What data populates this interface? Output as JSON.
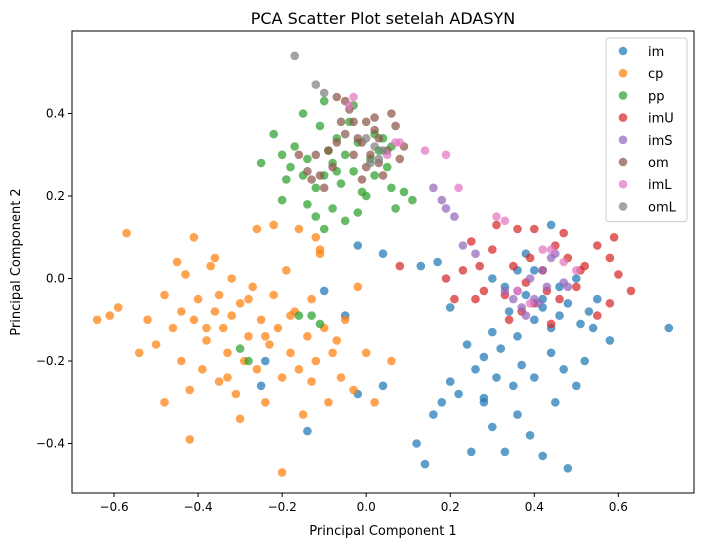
{
  "chart_data": {
    "type": "scatter",
    "title": "PCA Scatter Plot setelah ADASYN",
    "xlabel": "Principal Component 1",
    "ylabel": "Principal Component 2",
    "xlim": [
      -0.7,
      0.78
    ],
    "ylim": [
      -0.52,
      0.6
    ],
    "xticks": [
      -0.6,
      -0.4,
      -0.2,
      0.0,
      0.2,
      0.4,
      0.6
    ],
    "xtick_labels": [
      "−0.6",
      "−0.4",
      "−0.2",
      "0.0",
      "0.2",
      "0.4",
      "0.6"
    ],
    "yticks": [
      -0.4,
      -0.2,
      0.0,
      0.2,
      0.4
    ],
    "ytick_labels": [
      "−0.4",
      "−0.2",
      "0.0",
      "0.2",
      "0.4"
    ],
    "grid": false,
    "legend_position": "top-right",
    "series": [
      {
        "name": "im",
        "color": "#1f77b4",
        "points": [
          [
            0.72,
            -0.12
          ],
          [
            0.58,
            -0.15
          ],
          [
            0.55,
            -0.05
          ],
          [
            0.53,
            -0.08
          ],
          [
            0.51,
            -0.11
          ],
          [
            0.48,
            -0.06
          ],
          [
            0.46,
            -0.09
          ],
          [
            0.44,
            -0.12
          ],
          [
            0.42,
            -0.07
          ],
          [
            0.4,
            -0.1
          ],
          [
            0.38,
            -0.04
          ],
          [
            0.36,
            -0.14
          ],
          [
            0.34,
            -0.08
          ],
          [
            0.32,
            -0.17
          ],
          [
            0.3,
            -0.13
          ],
          [
            0.28,
            -0.19
          ],
          [
            0.26,
            -0.22
          ],
          [
            0.24,
            -0.16
          ],
          [
            0.22,
            -0.28
          ],
          [
            0.2,
            -0.25
          ],
          [
            0.18,
            -0.3
          ],
          [
            0.16,
            -0.33
          ],
          [
            0.14,
            -0.45
          ],
          [
            0.12,
            -0.4
          ],
          [
            0.28,
            -0.3
          ],
          [
            0.3,
            -0.36
          ],
          [
            0.33,
            -0.42
          ],
          [
            0.36,
            -0.33
          ],
          [
            0.39,
            -0.38
          ],
          [
            0.42,
            -0.43
          ],
          [
            0.45,
            -0.3
          ],
          [
            0.48,
            -0.46
          ],
          [
            0.5,
            -0.26
          ],
          [
            0.52,
            -0.2
          ],
          [
            0.44,
            -0.18
          ],
          [
            0.47,
            -0.22
          ],
          [
            0.4,
            -0.24
          ],
          [
            0.35,
            -0.26
          ],
          [
            0.25,
            -0.42
          ],
          [
            0.44,
            0.13
          ],
          [
            0.38,
            0.06
          ],
          [
            0.4,
            0.02
          ],
          [
            0.46,
            -0.02
          ],
          [
            0.5,
            0.0
          ],
          [
            0.36,
            0.02
          ],
          [
            0.33,
            -0.02
          ],
          [
            0.3,
            0.0
          ],
          [
            0.2,
            -0.07
          ],
          [
            0.17,
            0.04
          ],
          [
            0.13,
            0.03
          ],
          [
            -0.02,
            -0.28
          ],
          [
            0.04,
            -0.26
          ],
          [
            -0.14,
            -0.37
          ],
          [
            -0.25,
            -0.26
          ],
          [
            -0.24,
            -0.2
          ],
          [
            -0.1,
            -0.03
          ],
          [
            -0.05,
            -0.09
          ],
          [
            -0.02,
            0.08
          ],
          [
            0.04,
            0.06
          ],
          [
            0.28,
            -0.29
          ],
          [
            0.31,
            -0.24
          ],
          [
            0.37,
            -0.21
          ],
          [
            0.54,
            -0.12
          ],
          [
            0.42,
            -0.05
          ]
        ]
      },
      {
        "name": "cp",
        "color": "#ff7f0e",
        "points": [
          [
            -0.64,
            -0.1
          ],
          [
            -0.61,
            -0.09
          ],
          [
            -0.59,
            -0.07
          ],
          [
            -0.57,
            0.11
          ],
          [
            -0.54,
            -0.18
          ],
          [
            -0.52,
            -0.1
          ],
          [
            -0.5,
            -0.16
          ],
          [
            -0.48,
            -0.04
          ],
          [
            -0.46,
            -0.12
          ],
          [
            -0.45,
            0.04
          ],
          [
            -0.44,
            -0.2
          ],
          [
            -0.43,
            0.01
          ],
          [
            -0.42,
            -0.27
          ],
          [
            -0.41,
            -0.1
          ],
          [
            -0.4,
            -0.05
          ],
          [
            -0.39,
            -0.22
          ],
          [
            -0.38,
            -0.15
          ],
          [
            -0.37,
            0.03
          ],
          [
            -0.36,
            -0.08
          ],
          [
            -0.35,
            -0.25
          ],
          [
            -0.34,
            -0.12
          ],
          [
            -0.33,
            -0.18
          ],
          [
            -0.32,
            0.0
          ],
          [
            -0.31,
            -0.28
          ],
          [
            -0.3,
            -0.06
          ],
          [
            -0.29,
            -0.2
          ],
          [
            -0.28,
            -0.14
          ],
          [
            -0.27,
            -0.02
          ],
          [
            -0.26,
            -0.22
          ],
          [
            -0.25,
            -0.1
          ],
          [
            -0.24,
            -0.3
          ],
          [
            -0.23,
            -0.16
          ],
          [
            -0.22,
            -0.04
          ],
          [
            -0.21,
            -0.12
          ],
          [
            -0.2,
            -0.24
          ],
          [
            -0.19,
            0.02
          ],
          [
            -0.18,
            -0.18
          ],
          [
            -0.17,
            -0.08
          ],
          [
            -0.16,
            -0.22
          ],
          [
            -0.15,
            -0.33
          ],
          [
            -0.14,
            -0.14
          ],
          [
            -0.13,
            -0.05
          ],
          [
            -0.12,
            -0.2
          ],
          [
            -0.11,
            0.06
          ],
          [
            -0.1,
            -0.12
          ],
          [
            -0.09,
            -0.3
          ],
          [
            -0.08,
            -0.18
          ],
          [
            -0.06,
            -0.24
          ],
          [
            -0.05,
            -0.1
          ],
          [
            -0.03,
            -0.27
          ],
          [
            -0.02,
            -0.02
          ],
          [
            0.0,
            -0.18
          ],
          [
            0.02,
            -0.3
          ],
          [
            0.06,
            -0.2
          ],
          [
            -0.42,
            -0.39
          ],
          [
            -0.2,
            -0.47
          ],
          [
            -0.26,
            0.12
          ],
          [
            -0.22,
            0.13
          ],
          [
            -0.16,
            0.12
          ],
          [
            -0.12,
            0.1
          ],
          [
            -0.11,
            0.07
          ],
          [
            -0.36,
            0.05
          ],
          [
            -0.41,
            0.1
          ],
          [
            -0.3,
            -0.34
          ],
          [
            -0.35,
            -0.04
          ],
          [
            -0.32,
            -0.09
          ],
          [
            -0.28,
            -0.05
          ],
          [
            -0.38,
            -0.12
          ],
          [
            -0.24,
            -0.14
          ],
          [
            -0.18,
            -0.09
          ],
          [
            -0.13,
            -0.25
          ],
          [
            -0.07,
            -0.15
          ],
          [
            -0.48,
            -0.3
          ],
          [
            -0.44,
            -0.08
          ],
          [
            -0.33,
            -0.24
          ]
        ]
      },
      {
        "name": "pp",
        "color": "#2ca02c",
        "points": [
          [
            -0.22,
            0.35
          ],
          [
            -0.2,
            0.3
          ],
          [
            -0.18,
            0.27
          ],
          [
            -0.17,
            0.32
          ],
          [
            -0.15,
            0.25
          ],
          [
            -0.14,
            0.29
          ],
          [
            -0.12,
            0.22
          ],
          [
            -0.11,
            0.37
          ],
          [
            -0.1,
            0.25
          ],
          [
            -0.09,
            0.31
          ],
          [
            -0.08,
            0.28
          ],
          [
            -0.07,
            0.34
          ],
          [
            -0.06,
            0.23
          ],
          [
            -0.05,
            0.3
          ],
          [
            -0.04,
            0.38
          ],
          [
            -0.03,
            0.26
          ],
          [
            -0.02,
            0.33
          ],
          [
            -0.01,
            0.21
          ],
          [
            0.01,
            0.29
          ],
          [
            0.02,
            0.25
          ],
          [
            0.03,
            0.31
          ],
          [
            0.05,
            0.27
          ],
          [
            0.06,
            0.22
          ],
          [
            0.07,
            0.17
          ],
          [
            -0.12,
            0.15
          ],
          [
            -0.1,
            0.12
          ],
          [
            -0.08,
            0.17
          ],
          [
            -0.05,
            0.14
          ],
          [
            -0.2,
            0.19
          ],
          [
            0.09,
            0.21
          ],
          [
            0.11,
            0.19
          ],
          [
            -0.03,
            0.42
          ],
          [
            -0.1,
            0.43
          ],
          [
            -0.14,
            0.18
          ],
          [
            0.0,
            0.2
          ],
          [
            -0.02,
            0.16
          ],
          [
            0.04,
            0.34
          ],
          [
            -0.11,
            -0.11
          ],
          [
            -0.13,
            -0.09
          ],
          [
            -0.3,
            -0.17
          ],
          [
            -0.28,
            -0.2
          ],
          [
            -0.16,
            -0.09
          ],
          [
            0.06,
            0.32
          ],
          [
            -0.15,
            0.4
          ],
          [
            -0.19,
            0.24
          ],
          [
            -0.07,
            0.26
          ],
          [
            0.02,
            0.35
          ],
          [
            -0.25,
            0.28
          ]
        ]
      },
      {
        "name": "imU",
        "color": "#d62728",
        "points": [
          [
            0.63,
            -0.03
          ],
          [
            0.6,
            0.01
          ],
          [
            0.58,
            -0.06
          ],
          [
            0.55,
            0.08
          ],
          [
            0.52,
            0.03
          ],
          [
            0.5,
            -0.02
          ],
          [
            0.48,
            0.05
          ],
          [
            0.46,
            -0.05
          ],
          [
            0.45,
            0.08
          ],
          [
            0.43,
            -0.03
          ],
          [
            0.42,
            0.02
          ],
          [
            0.4,
            -0.06
          ],
          [
            0.39,
            0.05
          ],
          [
            0.38,
            -0.01
          ],
          [
            0.36,
            0.12
          ],
          [
            0.35,
            0.03
          ],
          [
            0.33,
            -0.04
          ],
          [
            0.31,
            0.13
          ],
          [
            0.3,
            0.07
          ],
          [
            0.28,
            -0.03
          ],
          [
            0.27,
            0.03
          ],
          [
            0.25,
            0.09
          ],
          [
            0.23,
            0.02
          ],
          [
            0.21,
            -0.05
          ],
          [
            0.19,
            0.0
          ],
          [
            0.55,
            -0.09
          ],
          [
            0.59,
            0.1
          ],
          [
            0.44,
            -0.11
          ],
          [
            0.51,
            0.02
          ],
          [
            0.47,
            0.11
          ],
          [
            0.4,
            0.12
          ],
          [
            0.37,
            -0.08
          ],
          [
            0.08,
            0.03
          ],
          [
            0.34,
            -0.1
          ],
          [
            0.58,
            0.05
          ],
          [
            0.26,
            -0.05
          ]
        ]
      },
      {
        "name": "imS",
        "color": "#9467bd",
        "points": [
          [
            0.4,
            -0.05
          ],
          [
            0.38,
            -0.09
          ],
          [
            0.36,
            -0.03
          ],
          [
            0.42,
            0.02
          ],
          [
            0.45,
            0.06
          ],
          [
            0.43,
            -0.02
          ],
          [
            0.35,
            -0.05
          ],
          [
            0.47,
            -0.01
          ],
          [
            0.33,
            -0.03
          ],
          [
            0.39,
            0.0
          ],
          [
            0.23,
            0.08
          ],
          [
            0.26,
            0.06
          ],
          [
            0.18,
            0.19
          ],
          [
            0.19,
            0.17
          ],
          [
            0.21,
            0.15
          ],
          [
            0.16,
            0.22
          ],
          [
            0.48,
            -0.02
          ],
          [
            0.41,
            -0.06
          ],
          [
            0.44,
            0.05
          ],
          [
            0.37,
            -0.07
          ]
        ]
      },
      {
        "name": "om",
        "color": "#8c564b",
        "points": [
          [
            -0.16,
            0.3
          ],
          [
            -0.14,
            0.26
          ],
          [
            -0.12,
            0.3
          ],
          [
            -0.1,
            0.22
          ],
          [
            -0.08,
            0.27
          ],
          [
            -0.07,
            0.33
          ],
          [
            -0.06,
            0.38
          ],
          [
            -0.05,
            0.35
          ],
          [
            -0.04,
            0.41
          ],
          [
            -0.03,
            0.38
          ],
          [
            -0.02,
            0.34
          ],
          [
            -0.01,
            0.33
          ],
          [
            0.0,
            0.38
          ],
          [
            0.01,
            0.3
          ],
          [
            0.02,
            0.36
          ],
          [
            0.03,
            0.28
          ],
          [
            0.04,
            0.25
          ],
          [
            0.05,
            0.31
          ],
          [
            0.06,
            0.4
          ],
          [
            0.07,
            0.37
          ],
          [
            0.08,
            0.29
          ],
          [
            0.09,
            0.32
          ],
          [
            -0.09,
            0.31
          ],
          [
            -0.11,
            0.25
          ],
          [
            -0.07,
            0.44
          ],
          [
            -0.03,
            0.3
          ],
          [
            0.0,
            0.27
          ],
          [
            0.03,
            0.34
          ],
          [
            -0.13,
            0.24
          ],
          [
            -0.05,
            0.43
          ],
          [
            0.02,
            0.39
          ],
          [
            -0.01,
            0.24
          ]
        ]
      },
      {
        "name": "imL",
        "color": "#e377c2",
        "points": [
          [
            0.22,
            0.22
          ],
          [
            0.19,
            0.3
          ],
          [
            0.14,
            0.31
          ],
          [
            0.08,
            0.33
          ],
          [
            0.05,
            0.3
          ],
          [
            -0.04,
            0.42
          ],
          [
            0.31,
            0.15
          ],
          [
            0.33,
            0.14
          ],
          [
            0.42,
            0.07
          ],
          [
            0.44,
            0.07
          ],
          [
            0.5,
            0.02
          ],
          [
            0.47,
            0.04
          ],
          [
            0.36,
            -0.03
          ],
          [
            0.39,
            -0.06
          ],
          [
            0.07,
            0.33
          ],
          [
            -0.03,
            0.44
          ]
        ]
      },
      {
        "name": "omL",
        "color": "#7f7f7f",
        "points": [
          [
            -0.17,
            0.54
          ],
          [
            -0.12,
            0.47
          ],
          [
            -0.1,
            0.45
          ],
          [
            0.0,
            0.34
          ],
          [
            0.02,
            0.32
          ],
          [
            0.04,
            0.31
          ],
          [
            0.03,
            0.29
          ],
          [
            0.01,
            0.28
          ]
        ]
      }
    ]
  }
}
